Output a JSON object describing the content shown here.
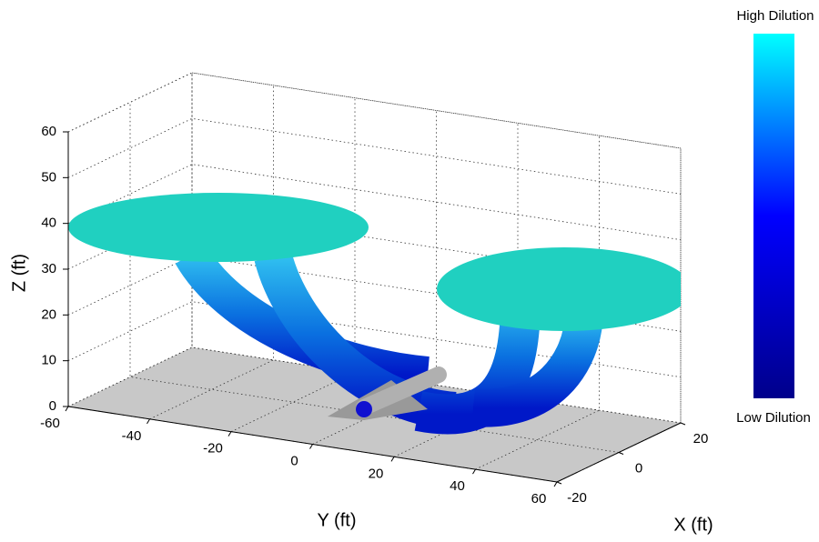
{
  "chart_data": {
    "type": "surface",
    "zlabel": "Z (ft)",
    "ylabel": "Y (ft)",
    "xlabel": "X (ft)",
    "zlim": [
      0,
      60
    ],
    "zticks": [
      0,
      10,
      20,
      30,
      40,
      50,
      60
    ],
    "ylim": [
      -60,
      60
    ],
    "yticks": [
      -60,
      -40,
      -20,
      0,
      20,
      40,
      60
    ],
    "xlim": [
      -20,
      20
    ],
    "xticks": [
      -20,
      0,
      20
    ],
    "grid": true,
    "colorbar": {
      "top_label": "High Dilution",
      "bottom_label": "Low Dilution",
      "colors": [
        "#00ffff",
        "#0000ff",
        "#00008b"
      ]
    }
  }
}
